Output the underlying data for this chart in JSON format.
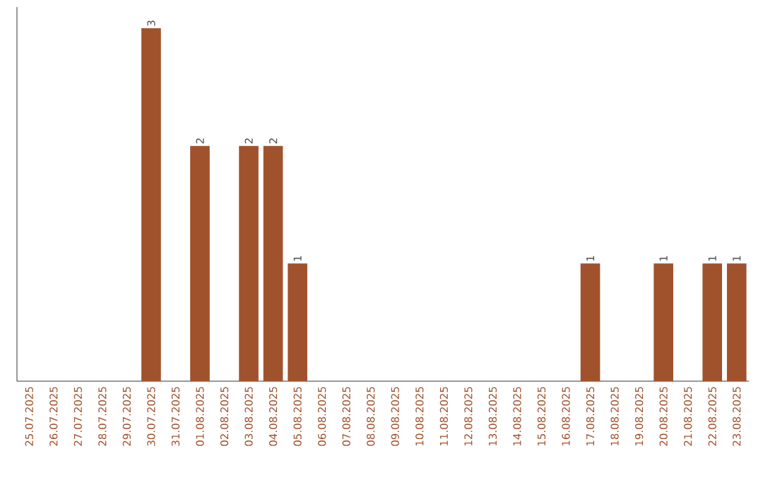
{
  "chart_data": {
    "type": "bar",
    "categories": [
      "25.07.2025",
      "26.07.2025",
      "27.07.2025",
      "28.07.2025",
      "29.07.2025",
      "30.07.2025",
      "31.07.2025",
      "01.08.2025",
      "02.08.2025",
      "03.08.2025",
      "04.08.2025",
      "05.08.2025",
      "06.08.2025",
      "07.08.2025",
      "08.08.2025",
      "09.08.2025",
      "10.08.2025",
      "11.08.2025",
      "12.08.2025",
      "13.08.2025",
      "14.08.2025",
      "15.08.2025",
      "16.08.2025",
      "17.08.2025",
      "18.08.2025",
      "19.08.2025",
      "20.08.2025",
      "21.08.2025",
      "22.08.2025",
      "23.08.2025"
    ],
    "values": [
      0,
      0,
      0,
      0,
      0,
      3,
      0,
      2,
      0,
      2,
      2,
      1,
      0,
      0,
      0,
      0,
      0,
      0,
      0,
      0,
      0,
      0,
      0,
      1,
      0,
      0,
      1,
      0,
      1,
      1
    ],
    "value_labels": [
      null,
      null,
      null,
      null,
      null,
      "3",
      null,
      "2",
      null,
      "2",
      "2",
      "1",
      null,
      null,
      null,
      null,
      null,
      null,
      null,
      null,
      null,
      null,
      null,
      "1",
      null,
      null,
      "1",
      null,
      "1",
      "1"
    ],
    "color": "#a0522d",
    "tick_labels": "x",
    "grid": false
  }
}
